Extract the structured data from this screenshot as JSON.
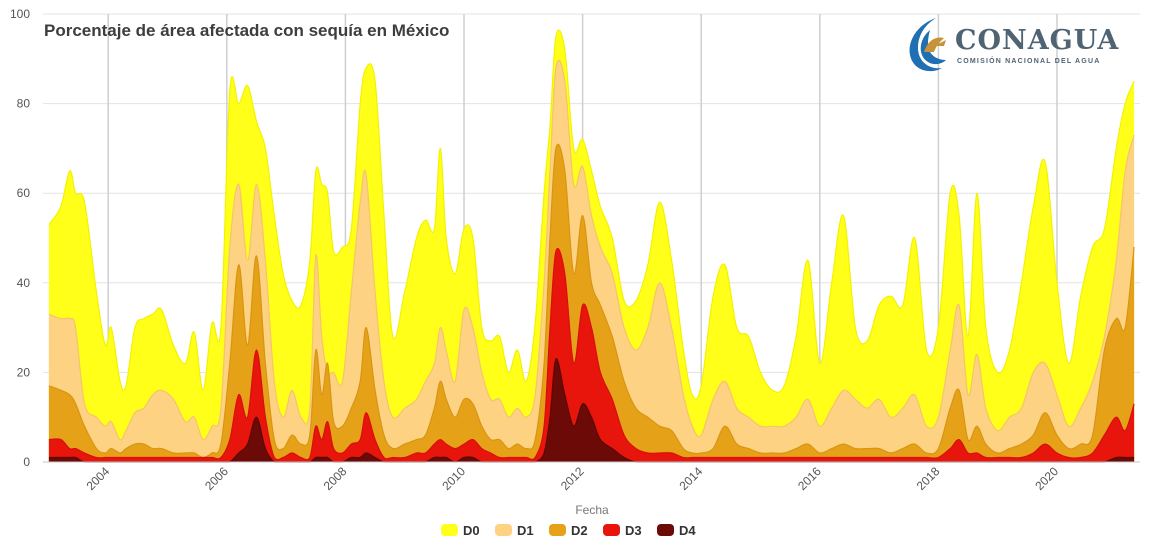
{
  "logo": {
    "name": "CONAGUA",
    "subtitle": "COMISIÓN NACIONAL DEL AGUA",
    "colors": {
      "blue": "#1f6fb2",
      "gold": "#c6923a",
      "text": "#4f6372"
    }
  },
  "chart_data": {
    "type": "area",
    "title": "Porcentaje de área afectada con sequía en México",
    "xlabel": "Fecha",
    "ylabel": "",
    "ylim": [
      0,
      100
    ],
    "xlim": [
      2002.9,
      2021.4
    ],
    "yticks": [
      "0",
      "20",
      "40",
      "60",
      "80",
      "100"
    ],
    "xticks": [
      "2004",
      "2006",
      "2008",
      "2010",
      "2012",
      "2014",
      "2016",
      "2018",
      "2020"
    ],
    "grid": true,
    "legend_position": "bottom-center",
    "x": [
      2003.0,
      2003.2,
      2003.35,
      2003.45,
      2003.6,
      2003.8,
      2003.95,
      2004.05,
      2004.2,
      2004.3,
      2004.45,
      2004.6,
      2004.75,
      2004.9,
      2005.1,
      2005.3,
      2005.45,
      2005.6,
      2005.75,
      2005.9,
      2006.05,
      2006.2,
      2006.35,
      2006.5,
      2006.65,
      2006.8,
      2006.95,
      2007.1,
      2007.25,
      2007.4,
      2007.5,
      2007.6,
      2007.7,
      2007.8,
      2007.95,
      2008.1,
      2008.25,
      2008.35,
      2008.5,
      2008.65,
      2008.8,
      2009.0,
      2009.2,
      2009.35,
      2009.5,
      2009.6,
      2009.7,
      2009.85,
      2010.0,
      2010.15,
      2010.3,
      2010.45,
      2010.6,
      2010.75,
      2010.9,
      2011.05,
      2011.2,
      2011.35,
      2011.45,
      2011.55,
      2011.7,
      2011.85,
      2012.0,
      2012.15,
      2012.3,
      2012.5,
      2012.7,
      2012.9,
      2013.1,
      2013.3,
      2013.5,
      2013.7,
      2013.85,
      2014.0,
      2014.2,
      2014.4,
      2014.6,
      2014.8,
      2015.0,
      2015.2,
      2015.4,
      2015.6,
      2015.8,
      2016.0,
      2016.2,
      2016.4,
      2016.6,
      2016.8,
      2017.0,
      2017.2,
      2017.4,
      2017.6,
      2017.8,
      2018.0,
      2018.2,
      2018.35,
      2018.5,
      2018.65,
      2018.8,
      2019.0,
      2019.2,
      2019.4,
      2019.6,
      2019.8,
      2020.0,
      2020.2,
      2020.4,
      2020.6,
      2020.8,
      2021.0,
      2021.15,
      2021.3
    ],
    "series": [
      {
        "name": "D0",
        "color": "#ffff1a",
        "values": [
          53,
          57,
          65,
          60,
          58,
          38,
          26,
          30,
          18,
          17,
          30,
          32,
          33,
          34,
          26,
          22,
          29,
          16,
          31,
          30,
          83,
          80,
          84,
          76,
          70,
          55,
          42,
          36,
          35,
          45,
          65,
          62,
          60,
          47,
          48,
          52,
          80,
          88,
          85,
          55,
          28,
          38,
          50,
          54,
          52,
          70,
          50,
          42,
          52,
          50,
          30,
          27,
          28,
          20,
          25,
          18,
          31,
          60,
          75,
          95,
          92,
          70,
          72,
          65,
          57,
          50,
          36,
          36,
          44,
          58,
          45,
          25,
          15,
          17,
          37,
          44,
          30,
          28,
          20,
          16,
          17,
          28,
          45,
          22,
          40,
          55,
          30,
          27,
          35,
          37,
          35,
          50,
          25,
          30,
          60,
          55,
          28,
          60,
          30,
          20,
          25,
          40,
          57,
          67,
          40,
          22,
          37,
          48,
          52,
          70,
          80,
          85
        ]
      },
      {
        "name": "D1",
        "color": "#fdd282",
        "values": [
          33,
          32,
          32,
          30,
          13,
          10,
          8,
          9,
          5,
          7,
          11,
          12,
          15,
          16,
          14,
          9,
          10,
          5,
          8,
          12,
          48,
          62,
          45,
          62,
          45,
          18,
          10,
          16,
          10,
          12,
          46,
          28,
          20,
          20,
          18,
          38,
          58,
          64,
          38,
          18,
          10,
          12,
          14,
          18,
          22,
          30,
          25,
          18,
          34,
          30,
          20,
          14,
          14,
          10,
          12,
          10,
          15,
          40,
          65,
          88,
          85,
          62,
          66,
          55,
          48,
          42,
          30,
          25,
          30,
          40,
          30,
          15,
          8,
          6,
          14,
          18,
          12,
          10,
          8,
          8,
          8,
          10,
          14,
          8,
          12,
          16,
          14,
          12,
          14,
          10,
          12,
          15,
          8,
          10,
          25,
          35,
          15,
          24,
          12,
          7,
          10,
          12,
          20,
          22,
          15,
          8,
          12,
          18,
          28,
          45,
          65,
          73
        ]
      },
      {
        "name": "D2",
        "color": "#e5a219",
        "values": [
          17,
          16,
          15,
          13,
          8,
          3,
          2,
          3,
          2,
          3,
          4,
          4,
          3,
          3,
          2,
          2,
          2,
          1,
          2,
          4,
          22,
          44,
          26,
          46,
          22,
          5,
          3,
          6,
          4,
          6,
          25,
          15,
          22,
          9,
          8,
          12,
          18,
          30,
          16,
          6,
          3,
          4,
          5,
          6,
          12,
          18,
          14,
          10,
          14,
          13,
          8,
          5,
          5,
          3,
          4,
          3,
          5,
          22,
          50,
          70,
          65,
          42,
          55,
          40,
          35,
          28,
          18,
          12,
          10,
          8,
          7,
          3,
          2,
          2,
          3,
          8,
          4,
          3,
          2,
          2,
          2,
          3,
          4,
          2,
          3,
          4,
          3,
          3,
          3,
          2,
          3,
          4,
          2,
          3,
          12,
          16,
          5,
          8,
          4,
          2,
          3,
          4,
          6,
          11,
          6,
          3,
          4,
          6,
          25,
          32,
          30,
          48
        ]
      },
      {
        "name": "D3",
        "color": "#e8150c",
        "values": [
          5,
          5,
          3,
          3,
          2,
          1,
          1,
          1,
          1,
          1,
          1,
          1,
          1,
          1,
          1,
          1,
          1,
          1,
          1,
          1,
          5,
          15,
          10,
          25,
          10,
          1,
          1,
          2,
          1,
          1,
          8,
          5,
          9,
          3,
          2,
          4,
          5,
          11,
          5,
          1,
          1,
          1,
          2,
          2,
          4,
          5,
          4,
          3,
          4,
          5,
          3,
          2,
          1,
          1,
          1,
          1,
          1,
          8,
          30,
          47,
          42,
          22,
          35,
          30,
          20,
          14,
          6,
          3,
          2,
          2,
          2,
          1,
          1,
          1,
          1,
          1,
          1,
          1,
          1,
          1,
          1,
          1,
          1,
          1,
          1,
          1,
          1,
          1,
          1,
          1,
          1,
          1,
          1,
          1,
          3,
          5,
          2,
          2,
          1,
          1,
          1,
          1,
          2,
          4,
          2,
          1,
          1,
          2,
          6,
          10,
          7,
          13
        ]
      },
      {
        "name": "D4",
        "color": "#6b0a06",
        "values": [
          1,
          1,
          1,
          1,
          0,
          0,
          0,
          0,
          0,
          0,
          0,
          0,
          0,
          0,
          0,
          0,
          0,
          0,
          0,
          0,
          0,
          2,
          4,
          10,
          3,
          0,
          0,
          0,
          0,
          0,
          1,
          1,
          1,
          0,
          0,
          1,
          1,
          2,
          1,
          0,
          0,
          0,
          0,
          0,
          1,
          1,
          1,
          0,
          1,
          1,
          0,
          0,
          0,
          0,
          0,
          0,
          0,
          2,
          10,
          23,
          15,
          8,
          13,
          10,
          5,
          3,
          1,
          0,
          0,
          0,
          0,
          0,
          0,
          0,
          0,
          0,
          0,
          0,
          0,
          0,
          0,
          0,
          0,
          0,
          0,
          0,
          0,
          0,
          0,
          0,
          0,
          0,
          0,
          0,
          0,
          0,
          0,
          0,
          0,
          0,
          0,
          0,
          0,
          0,
          0,
          0,
          0,
          0,
          0,
          1,
          1,
          1
        ]
      }
    ]
  }
}
